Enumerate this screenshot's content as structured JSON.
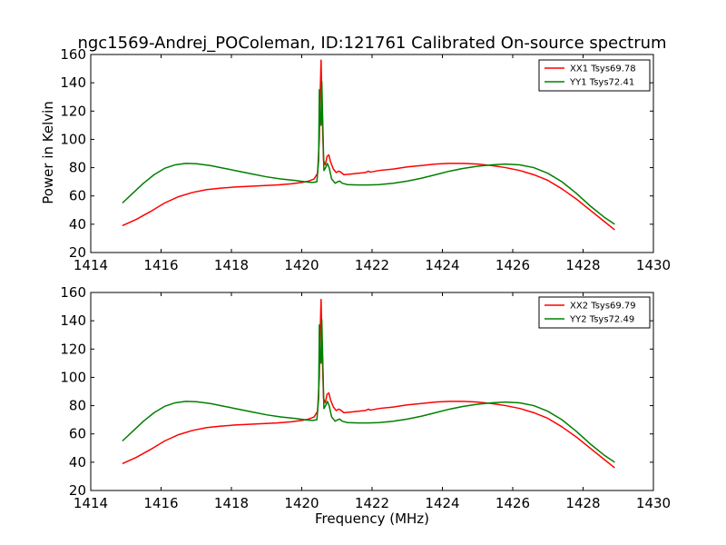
{
  "chart_data": {
    "type": "line",
    "title": "ngc1569-Andrej_POColeman, ID:121761 Calibrated On-source spectrum",
    "xlabel": "Frequency (MHz)",
    "ylabel": "Power in Kelvin",
    "legend_position": "top-right",
    "grid": false,
    "panels": [
      {
        "xlim": [
          1414,
          1430
        ],
        "ylim": [
          20,
          160
        ],
        "xticks": [
          1414,
          1416,
          1418,
          1420,
          1422,
          1424,
          1426,
          1428,
          1430
        ],
        "yticks": [
          20,
          40,
          60,
          80,
          100,
          120,
          140,
          160
        ],
        "series": [
          {
            "name": "XX1 Tsys69.78",
            "color": "#ff0000",
            "points": [
              [
                1414.9,
                39
              ],
              [
                1415.3,
                43.5
              ],
              [
                1415.7,
                49
              ],
              [
                1416.1,
                55
              ],
              [
                1416.5,
                59.5
              ],
              [
                1416.9,
                62.5
              ],
              [
                1417.3,
                64.5
              ],
              [
                1417.7,
                65.5
              ],
              [
                1418.1,
                66.3
              ],
              [
                1418.5,
                66.8
              ],
              [
                1418.9,
                67.3
              ],
              [
                1419.3,
                67.8
              ],
              [
                1419.7,
                68.6
              ],
              [
                1420.0,
                69.5
              ],
              [
                1420.2,
                70.5
              ],
              [
                1420.35,
                72
              ],
              [
                1420.45,
                76
              ],
              [
                1420.5,
                100
              ],
              [
                1420.52,
                128
              ],
              [
                1420.55,
                156
              ],
              [
                1420.58,
                120
              ],
              [
                1420.62,
                85
              ],
              [
                1420.67,
                82
              ],
              [
                1420.72,
                88
              ],
              [
                1420.77,
                89
              ],
              [
                1420.82,
                84
              ],
              [
                1420.9,
                79
              ],
              [
                1420.98,
                76.5
              ],
              [
                1421.05,
                77.5
              ],
              [
                1421.1,
                77
              ],
              [
                1421.2,
                75
              ],
              [
                1421.4,
                75.5
              ],
              [
                1421.6,
                76
              ],
              [
                1421.8,
                76.5
              ],
              [
                1421.9,
                77.5
              ],
              [
                1421.95,
                76.8
              ],
              [
                1422.2,
                78
              ],
              [
                1422.6,
                79
              ],
              [
                1423.0,
                80.5
              ],
              [
                1423.4,
                81.5
              ],
              [
                1423.8,
                82.5
              ],
              [
                1424.2,
                83
              ],
              [
                1424.6,
                83
              ],
              [
                1425.0,
                82.5
              ],
              [
                1425.4,
                81.5
              ],
              [
                1425.8,
                80
              ],
              [
                1426.2,
                78
              ],
              [
                1426.6,
                75
              ],
              [
                1427.0,
                71
              ],
              [
                1427.4,
                65
              ],
              [
                1427.8,
                58
              ],
              [
                1428.2,
                50
              ],
              [
                1428.6,
                42
              ],
              [
                1428.9,
                36
              ]
            ]
          },
          {
            "name": "YY1 Tsys72.41",
            "color": "#008000",
            "points": [
              [
                1414.9,
                55
              ],
              [
                1415.2,
                62
              ],
              [
                1415.5,
                69
              ],
              [
                1415.8,
                75
              ],
              [
                1416.1,
                79.5
              ],
              [
                1416.4,
                82
              ],
              [
                1416.7,
                83
              ],
              [
                1417.0,
                82.8
              ],
              [
                1417.4,
                81.5
              ],
              [
                1417.8,
                79.5
              ],
              [
                1418.2,
                77.5
              ],
              [
                1418.6,
                75.5
              ],
              [
                1419.0,
                73.5
              ],
              [
                1419.4,
                72
              ],
              [
                1419.8,
                71
              ],
              [
                1420.1,
                70
              ],
              [
                1420.3,
                69.5
              ],
              [
                1420.43,
                70
              ],
              [
                1420.48,
                85
              ],
              [
                1420.5,
                135
              ],
              [
                1420.52,
                115
              ],
              [
                1420.55,
                110
              ],
              [
                1420.57,
                141
              ],
              [
                1420.6,
                110
              ],
              [
                1420.63,
                78
              ],
              [
                1420.68,
                80
              ],
              [
                1420.73,
                83
              ],
              [
                1420.78,
                80
              ],
              [
                1420.85,
                72
              ],
              [
                1420.95,
                69
              ],
              [
                1421.02,
                70
              ],
              [
                1421.08,
                70.5
              ],
              [
                1421.15,
                69
              ],
              [
                1421.3,
                68
              ],
              [
                1421.6,
                67.8
              ],
              [
                1421.9,
                67.8
              ],
              [
                1422.2,
                68
              ],
              [
                1422.6,
                69
              ],
              [
                1423.0,
                70.5
              ],
              [
                1423.4,
                72.5
              ],
              [
                1423.8,
                75
              ],
              [
                1424.2,
                77.5
              ],
              [
                1424.6,
                79.5
              ],
              [
                1425.0,
                81
              ],
              [
                1425.4,
                82
              ],
              [
                1425.8,
                82.5
              ],
              [
                1426.2,
                82
              ],
              [
                1426.6,
                80
              ],
              [
                1427.0,
                76
              ],
              [
                1427.4,
                70
              ],
              [
                1427.8,
                62
              ],
              [
                1428.2,
                53
              ],
              [
                1428.6,
                45
              ],
              [
                1428.9,
                40
              ]
            ]
          }
        ]
      },
      {
        "xlim": [
          1414,
          1430
        ],
        "ylim": [
          20,
          160
        ],
        "xticks": [
          1414,
          1416,
          1418,
          1420,
          1422,
          1424,
          1426,
          1428,
          1430
        ],
        "yticks": [
          20,
          40,
          60,
          80,
          100,
          120,
          140,
          160
        ],
        "series": [
          {
            "name": "XX2 Tsys69.79",
            "color": "#ff0000",
            "points": [
              [
                1414.9,
                39
              ],
              [
                1415.3,
                43.5
              ],
              [
                1415.7,
                49
              ],
              [
                1416.1,
                55
              ],
              [
                1416.5,
                59.5
              ],
              [
                1416.9,
                62.5
              ],
              [
                1417.3,
                64.5
              ],
              [
                1417.7,
                65.5
              ],
              [
                1418.1,
                66.3
              ],
              [
                1418.5,
                66.8
              ],
              [
                1418.9,
                67.3
              ],
              [
                1419.3,
                67.8
              ],
              [
                1419.7,
                68.6
              ],
              [
                1420.0,
                69.5
              ],
              [
                1420.2,
                70.5
              ],
              [
                1420.35,
                72
              ],
              [
                1420.45,
                76
              ],
              [
                1420.5,
                100
              ],
              [
                1420.52,
                128
              ],
              [
                1420.55,
                155
              ],
              [
                1420.58,
                120
              ],
              [
                1420.62,
                85
              ],
              [
                1420.67,
                82
              ],
              [
                1420.72,
                88
              ],
              [
                1420.77,
                89
              ],
              [
                1420.82,
                84
              ],
              [
                1420.9,
                79
              ],
              [
                1420.98,
                76.5
              ],
              [
                1421.05,
                77.5
              ],
              [
                1421.1,
                77
              ],
              [
                1421.2,
                75
              ],
              [
                1421.4,
                75.5
              ],
              [
                1421.6,
                76
              ],
              [
                1421.8,
                76.5
              ],
              [
                1421.9,
                77.5
              ],
              [
                1421.95,
                76.8
              ],
              [
                1422.2,
                78
              ],
              [
                1422.6,
                79
              ],
              [
                1423.0,
                80.5
              ],
              [
                1423.4,
                81.5
              ],
              [
                1423.8,
                82.5
              ],
              [
                1424.2,
                83
              ],
              [
                1424.6,
                83
              ],
              [
                1425.0,
                82.5
              ],
              [
                1425.4,
                81.5
              ],
              [
                1425.8,
                80
              ],
              [
                1426.2,
                78
              ],
              [
                1426.6,
                75
              ],
              [
                1427.0,
                71
              ],
              [
                1427.4,
                65
              ],
              [
                1427.8,
                58
              ],
              [
                1428.2,
                50
              ],
              [
                1428.6,
                42
              ],
              [
                1428.9,
                36
              ]
            ]
          },
          {
            "name": "YY2 Tsys72.49",
            "color": "#008000",
            "points": [
              [
                1414.9,
                55
              ],
              [
                1415.2,
                62
              ],
              [
                1415.5,
                69
              ],
              [
                1415.8,
                75
              ],
              [
                1416.1,
                79.5
              ],
              [
                1416.4,
                82
              ],
              [
                1416.7,
                83
              ],
              [
                1417.0,
                82.8
              ],
              [
                1417.4,
                81.5
              ],
              [
                1417.8,
                79.5
              ],
              [
                1418.2,
                77.5
              ],
              [
                1418.6,
                75.5
              ],
              [
                1419.0,
                73.5
              ],
              [
                1419.4,
                72
              ],
              [
                1419.8,
                71
              ],
              [
                1420.1,
                70
              ],
              [
                1420.3,
                69.5
              ],
              [
                1420.43,
                70
              ],
              [
                1420.48,
                85
              ],
              [
                1420.5,
                137
              ],
              [
                1420.52,
                115
              ],
              [
                1420.55,
                110
              ],
              [
                1420.57,
                141
              ],
              [
                1420.6,
                110
              ],
              [
                1420.63,
                78
              ],
              [
                1420.68,
                80
              ],
              [
                1420.73,
                83
              ],
              [
                1420.78,
                80
              ],
              [
                1420.85,
                72
              ],
              [
                1420.95,
                69
              ],
              [
                1421.02,
                70
              ],
              [
                1421.08,
                70.5
              ],
              [
                1421.15,
                69
              ],
              [
                1421.3,
                68
              ],
              [
                1421.6,
                67.8
              ],
              [
                1421.9,
                67.8
              ],
              [
                1422.2,
                68
              ],
              [
                1422.6,
                69
              ],
              [
                1423.0,
                70.5
              ],
              [
                1423.4,
                72.5
              ],
              [
                1423.8,
                75
              ],
              [
                1424.2,
                77.5
              ],
              [
                1424.6,
                79.5
              ],
              [
                1425.0,
                81
              ],
              [
                1425.4,
                82
              ],
              [
                1425.8,
                82.5
              ],
              [
                1426.2,
                82
              ],
              [
                1426.6,
                80
              ],
              [
                1427.0,
                76
              ],
              [
                1427.4,
                70
              ],
              [
                1427.8,
                62
              ],
              [
                1428.2,
                53
              ],
              [
                1428.6,
                45
              ],
              [
                1428.9,
                40
              ]
            ]
          }
        ]
      }
    ]
  }
}
